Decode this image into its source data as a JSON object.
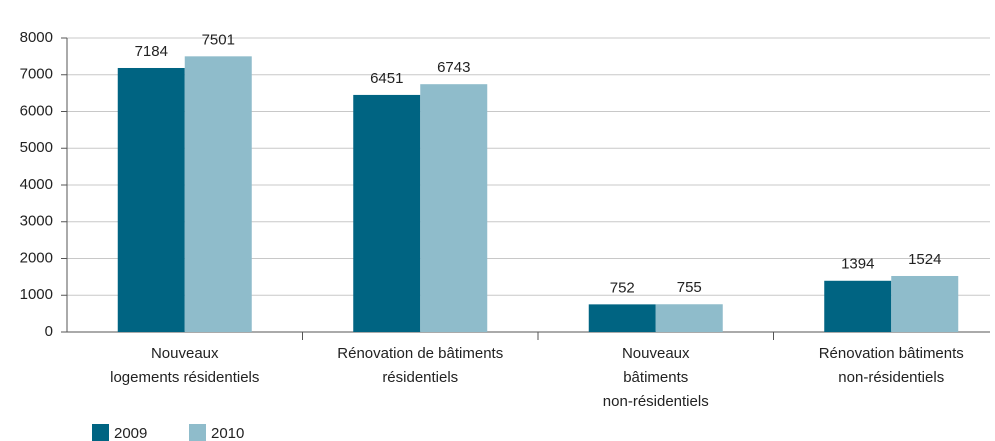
{
  "chart_data": {
    "type": "bar",
    "categories": [
      "Nouveaux\nlogements résidentiels",
      "Rénovation de bâtiments\nrésidentiels",
      "Nouveaux\nbâtiments\nnon-résidentiels",
      "Rénovation bâtiments\nnon-résidentiels"
    ],
    "series": [
      {
        "name": "2009",
        "color": "#006482",
        "values": [
          7184,
          6451,
          752,
          1394
        ]
      },
      {
        "name": "2010",
        "color": "#8fbccb",
        "values": [
          7501,
          6743,
          755,
          1524
        ]
      }
    ],
    "ylim": [
      0,
      8000
    ],
    "yticks": [
      0,
      1000,
      2000,
      3000,
      4000,
      5000,
      6000,
      7000,
      8000
    ],
    "grid": true
  }
}
